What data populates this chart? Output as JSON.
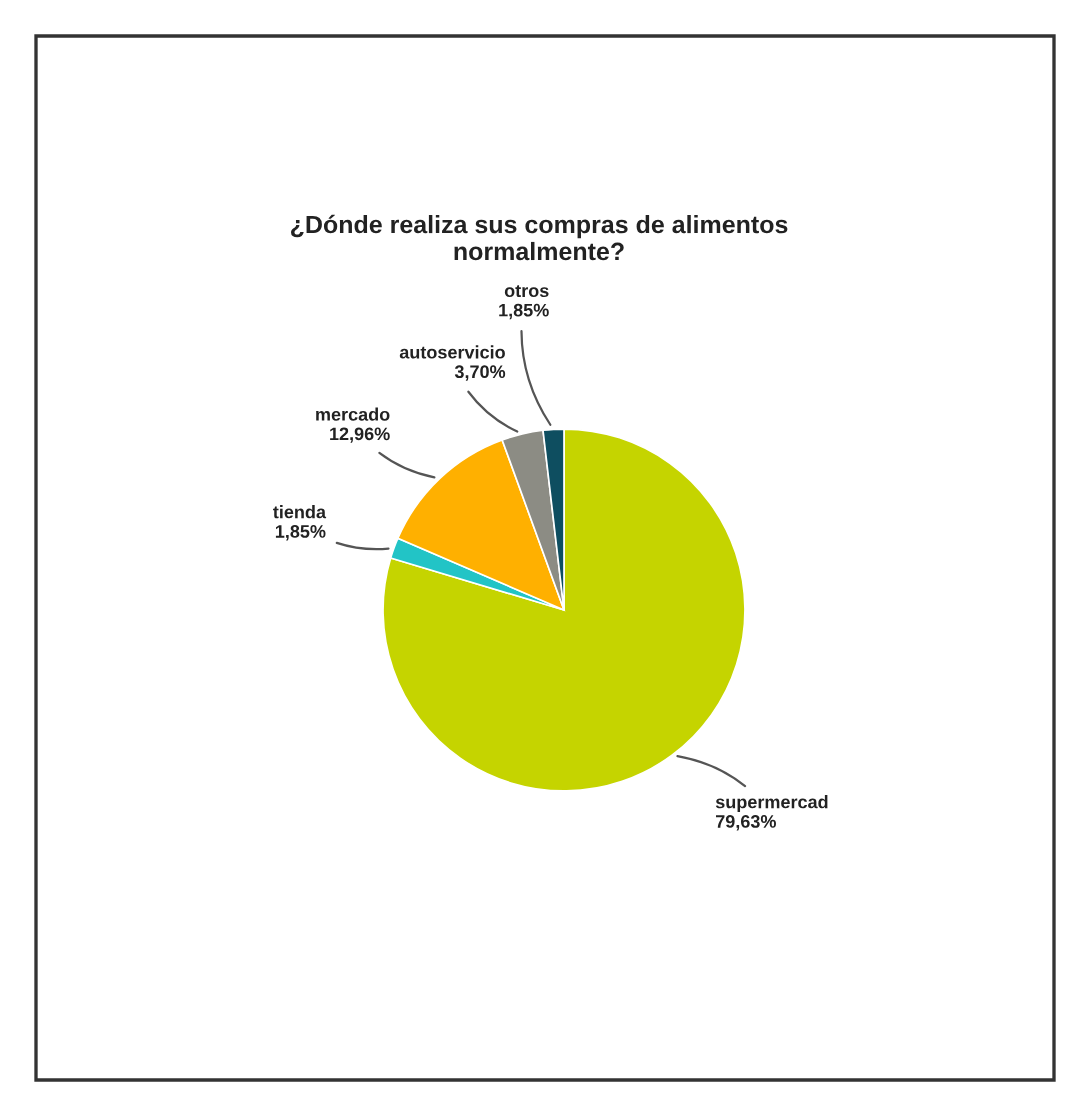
{
  "chart_data": {
    "type": "pie",
    "title": "¿Dónde realiza sus compras de alimentos\nnormalmente?",
    "categories": [
      "supermercad",
      "tienda",
      "mercado",
      "autoservicio",
      "otros"
    ],
    "values": [
      79.63,
      1.85,
      12.96,
      3.7,
      1.85
    ],
    "value_labels": [
      "79,63%",
      "1,85%",
      "12,96%",
      "3,70%",
      "1,85%"
    ],
    "colors": [
      "#c5d400",
      "#22c4c6",
      "#ffb000",
      "#8c8c84",
      "#0e4e60"
    ]
  }
}
